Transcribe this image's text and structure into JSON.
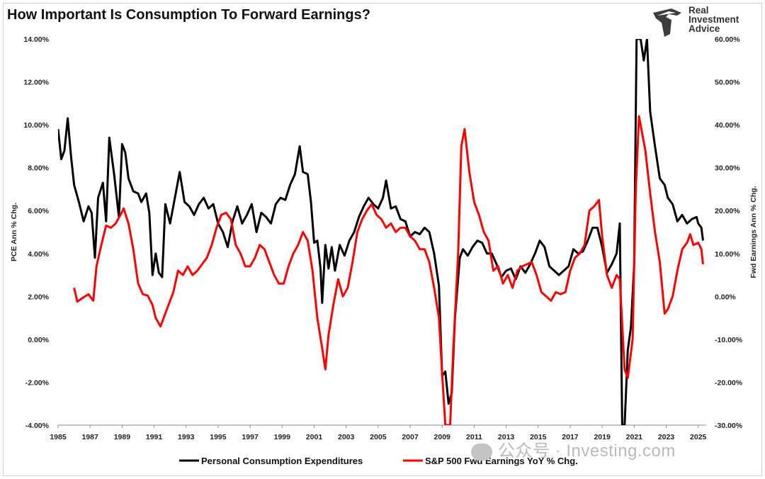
{
  "title": "How Important Is Consumption To Forward Earnings?",
  "logo": {
    "line1": "Real",
    "line2": "Investment",
    "line3": "Advice",
    "icon": "eagle-head-icon"
  },
  "watermark": {
    "text": "公众号 · Investing.com",
    "icon": "wechat-icon"
  },
  "colors": {
    "pce": "#000000",
    "earnings": "#ff0000",
    "background": "#ffffff"
  },
  "chart_data": {
    "type": "line",
    "title": "How Important Is Consumption To Forward Earnings?",
    "xlabel": "",
    "ylabel_left": "PCE Ann % Chg.",
    "ylabel_right": "Fwd Earnings Ann % Chg.",
    "xlim": [
      1985,
      2025.5
    ],
    "ylim_left": [
      -4,
      14
    ],
    "ylim_right": [
      -30,
      60
    ],
    "x_ticks": [
      "1985",
      "1987",
      "1989",
      "1991",
      "1993",
      "1995",
      "1997",
      "1999",
      "2001",
      "2003",
      "2005",
      "2007",
      "2009",
      "2011",
      "2013",
      "2015",
      "2017",
      "2019",
      "2021",
      "2023",
      "2025"
    ],
    "y_ticks_left": [
      "14.00%",
      "12.00%",
      "10.00%",
      "8.00%",
      "6.00%",
      "4.00%",
      "2.00%",
      "0.00%",
      "-2.00%",
      "-4.00%"
    ],
    "y_ticks_right": [
      "60.00%",
      "50.00%",
      "40.00%",
      "30.00%",
      "20.00%",
      "10.00%",
      "0.00%",
      "-10.00%",
      "-20.00%",
      "-30.00%"
    ],
    "grid": false,
    "legend_position": "bottom",
    "series": [
      {
        "name": "Personal Consumption Expenditures",
        "axis": "left",
        "color": "#000000",
        "points": [
          [
            1985.0,
            9.8
          ],
          [
            1985.2,
            8.4
          ],
          [
            1985.4,
            8.8
          ],
          [
            1985.6,
            10.3
          ],
          [
            1985.8,
            8.6
          ],
          [
            1986.0,
            7.2
          ],
          [
            1986.3,
            6.4
          ],
          [
            1986.6,
            5.5
          ],
          [
            1986.9,
            6.2
          ],
          [
            1987.1,
            5.9
          ],
          [
            1987.3,
            3.8
          ],
          [
            1987.5,
            6.6
          ],
          [
            1987.8,
            7.3
          ],
          [
            1988.0,
            5.5
          ],
          [
            1988.2,
            9.4
          ],
          [
            1988.5,
            7.7
          ],
          [
            1988.8,
            5.7
          ],
          [
            1989.0,
            9.1
          ],
          [
            1989.2,
            8.7
          ],
          [
            1989.4,
            7.5
          ],
          [
            1989.7,
            6.9
          ],
          [
            1990.0,
            6.8
          ],
          [
            1990.2,
            6.4
          ],
          [
            1990.5,
            6.8
          ],
          [
            1990.7,
            5.9
          ],
          [
            1990.9,
            3.0
          ],
          [
            1991.1,
            4.0
          ],
          [
            1991.3,
            3.1
          ],
          [
            1991.5,
            2.9
          ],
          [
            1991.7,
            6.3
          ],
          [
            1992.0,
            5.4
          ],
          [
            1992.3,
            6.6
          ],
          [
            1992.6,
            7.8
          ],
          [
            1992.9,
            6.4
          ],
          [
            1993.2,
            6.2
          ],
          [
            1993.5,
            5.8
          ],
          [
            1993.8,
            6.3
          ],
          [
            1994.1,
            6.6
          ],
          [
            1994.4,
            6.1
          ],
          [
            1994.7,
            6.3
          ],
          [
            1995.0,
            5.4
          ],
          [
            1995.3,
            5.0
          ],
          [
            1995.6,
            4.3
          ],
          [
            1995.9,
            5.5
          ],
          [
            1996.2,
            6.2
          ],
          [
            1996.5,
            5.4
          ],
          [
            1996.8,
            5.8
          ],
          [
            1997.1,
            6.3
          ],
          [
            1997.4,
            5.0
          ],
          [
            1997.7,
            5.9
          ],
          [
            1998.0,
            5.7
          ],
          [
            1998.3,
            5.4
          ],
          [
            1998.6,
            6.3
          ],
          [
            1998.9,
            6.6
          ],
          [
            1999.2,
            6.5
          ],
          [
            1999.5,
            7.2
          ],
          [
            1999.8,
            7.7
          ],
          [
            2000.1,
            9.0
          ],
          [
            2000.3,
            7.8
          ],
          [
            2000.6,
            7.7
          ],
          [
            2000.8,
            6.4
          ],
          [
            2001.0,
            4.5
          ],
          [
            2001.2,
            4.6
          ],
          [
            2001.4,
            3.3
          ],
          [
            2001.5,
            1.7
          ],
          [
            2001.7,
            4.4
          ],
          [
            2001.9,
            3.3
          ],
          [
            2002.1,
            4.3
          ],
          [
            2002.3,
            3.2
          ],
          [
            2002.6,
            4.4
          ],
          [
            2002.9,
            3.9
          ],
          [
            2003.2,
            4.6
          ],
          [
            2003.5,
            5.0
          ],
          [
            2003.8,
            5.7
          ],
          [
            2004.1,
            6.2
          ],
          [
            2004.4,
            6.6
          ],
          [
            2004.7,
            6.3
          ],
          [
            2005.0,
            6.1
          ],
          [
            2005.3,
            6.6
          ],
          [
            2005.5,
            7.4
          ],
          [
            2005.8,
            6.1
          ],
          [
            2006.1,
            6.2
          ],
          [
            2006.4,
            5.6
          ],
          [
            2006.7,
            5.5
          ],
          [
            2007.0,
            4.8
          ],
          [
            2007.3,
            5.0
          ],
          [
            2007.6,
            4.9
          ],
          [
            2007.9,
            5.2
          ],
          [
            2008.2,
            5.0
          ],
          [
            2008.5,
            4.0
          ],
          [
            2008.8,
            2.5
          ],
          [
            2009.0,
            -1.7
          ],
          [
            2009.2,
            -1.5
          ],
          [
            2009.4,
            -3.0
          ],
          [
            2009.6,
            -2.5
          ],
          [
            2009.8,
            1.0
          ],
          [
            2010.1,
            3.8
          ],
          [
            2010.3,
            4.2
          ],
          [
            2010.6,
            3.9
          ],
          [
            2010.9,
            4.3
          ],
          [
            2011.2,
            4.6
          ],
          [
            2011.5,
            4.5
          ],
          [
            2011.8,
            4.0
          ],
          [
            2012.1,
            4.0
          ],
          [
            2012.4,
            3.5
          ],
          [
            2012.7,
            2.9
          ],
          [
            2013.0,
            3.2
          ],
          [
            2013.3,
            3.3
          ],
          [
            2013.6,
            2.8
          ],
          [
            2013.9,
            3.4
          ],
          [
            2014.2,
            3.1
          ],
          [
            2014.5,
            3.5
          ],
          [
            2014.8,
            4.0
          ],
          [
            2015.1,
            4.6
          ],
          [
            2015.4,
            4.3
          ],
          [
            2015.7,
            3.4
          ],
          [
            2016.0,
            3.2
          ],
          [
            2016.3,
            3.0
          ],
          [
            2016.6,
            3.2
          ],
          [
            2016.9,
            3.4
          ],
          [
            2017.2,
            4.2
          ],
          [
            2017.5,
            4.0
          ],
          [
            2017.8,
            4.1
          ],
          [
            2018.1,
            4.6
          ],
          [
            2018.4,
            5.2
          ],
          [
            2018.7,
            5.2
          ],
          [
            2019.0,
            4.3
          ],
          [
            2019.3,
            3.1
          ],
          [
            2019.6,
            3.5
          ],
          [
            2019.9,
            4.0
          ],
          [
            2020.1,
            5.4
          ],
          [
            2020.25,
            -4.0
          ],
          [
            2020.4,
            -4.0
          ],
          [
            2020.6,
            -0.5
          ],
          [
            2020.8,
            0.6
          ],
          [
            2021.0,
            3.5
          ],
          [
            2021.15,
            14.0
          ],
          [
            2021.4,
            14.0
          ],
          [
            2021.6,
            13.0
          ],
          [
            2021.8,
            14.0
          ],
          [
            2022.0,
            10.6
          ],
          [
            2022.3,
            9.0
          ],
          [
            2022.6,
            7.5
          ],
          [
            2022.9,
            7.2
          ],
          [
            2023.1,
            6.6
          ],
          [
            2023.4,
            6.3
          ],
          [
            2023.7,
            5.5
          ],
          [
            2024.0,
            5.8
          ],
          [
            2024.3,
            5.4
          ],
          [
            2024.6,
            5.6
          ],
          [
            2024.9,
            5.7
          ],
          [
            2025.0,
            5.4
          ],
          [
            2025.2,
            5.2
          ],
          [
            2025.3,
            4.6
          ]
        ]
      },
      {
        "name": "S&P 500 Fwd Earnings YoY % Chg.",
        "axis": "right",
        "color": "#ff0000",
        "points": [
          [
            1986.0,
            2.0
          ],
          [
            1986.2,
            -1.2
          ],
          [
            1986.6,
            -0.2
          ],
          [
            1986.9,
            0.5
          ],
          [
            1987.2,
            -1.0
          ],
          [
            1987.4,
            7.0
          ],
          [
            1987.7,
            12.0
          ],
          [
            1988.0,
            16.5
          ],
          [
            1988.3,
            16.0
          ],
          [
            1988.6,
            17.0
          ],
          [
            1988.9,
            19.0
          ],
          [
            1989.1,
            20.5
          ],
          [
            1989.4,
            17.0
          ],
          [
            1989.7,
            11.0
          ],
          [
            1990.0,
            3.0
          ],
          [
            1990.3,
            0.5
          ],
          [
            1990.6,
            0.2
          ],
          [
            1990.9,
            -2.0
          ],
          [
            1991.1,
            -5.0
          ],
          [
            1991.4,
            -7.0
          ],
          [
            1991.6,
            -5.0
          ],
          [
            1991.9,
            -2.0
          ],
          [
            1992.2,
            1.0
          ],
          [
            1992.5,
            6.0
          ],
          [
            1992.8,
            5.0
          ],
          [
            1993.1,
            7.0
          ],
          [
            1993.4,
            5.0
          ],
          [
            1993.7,
            6.0
          ],
          [
            1994.0,
            7.5
          ],
          [
            1994.3,
            9.0
          ],
          [
            1994.6,
            12.0
          ],
          [
            1994.9,
            16.0
          ],
          [
            1995.2,
            19.0
          ],
          [
            1995.5,
            19.5
          ],
          [
            1995.8,
            18.0
          ],
          [
            1996.1,
            12.0
          ],
          [
            1996.4,
            10.0
          ],
          [
            1996.7,
            7.0
          ],
          [
            1997.0,
            7.0
          ],
          [
            1997.3,
            9.0
          ],
          [
            1997.6,
            12.0
          ],
          [
            1997.9,
            11.0
          ],
          [
            1998.2,
            8.0
          ],
          [
            1998.5,
            5.0
          ],
          [
            1998.8,
            3.0
          ],
          [
            1999.1,
            3.0
          ],
          [
            1999.4,
            7.0
          ],
          [
            1999.7,
            10.0
          ],
          [
            2000.0,
            12.0
          ],
          [
            2000.3,
            15.0
          ],
          [
            2000.6,
            13.0
          ],
          [
            2000.9,
            6.0
          ],
          [
            2001.2,
            -5.0
          ],
          [
            2001.5,
            -12.0
          ],
          [
            2001.7,
            -17.0
          ],
          [
            2001.9,
            -9.0
          ],
          [
            2002.2,
            -2.0
          ],
          [
            2002.5,
            4.0
          ],
          [
            2002.8,
            0.0
          ],
          [
            2003.1,
            2.0
          ],
          [
            2003.4,
            8.0
          ],
          [
            2003.7,
            15.0
          ],
          [
            2004.0,
            18.0
          ],
          [
            2004.3,
            20.0
          ],
          [
            2004.6,
            21.5
          ],
          [
            2004.9,
            19.0
          ],
          [
            2005.2,
            18.0
          ],
          [
            2005.5,
            16.0
          ],
          [
            2005.8,
            17.0
          ],
          [
            2006.1,
            15.0
          ],
          [
            2006.4,
            16.0
          ],
          [
            2006.7,
            16.0
          ],
          [
            2007.0,
            14.0
          ],
          [
            2007.3,
            13.0
          ],
          [
            2007.6,
            11.0
          ],
          [
            2007.9,
            11.0
          ],
          [
            2008.2,
            8.0
          ],
          [
            2008.5,
            2.0
          ],
          [
            2008.8,
            -5.0
          ],
          [
            2009.0,
            -18.0
          ],
          [
            2009.2,
            -30.0
          ],
          [
            2009.5,
            -30.0
          ],
          [
            2009.7,
            -12.0
          ],
          [
            2010.0,
            10.0
          ],
          [
            2010.2,
            35.0
          ],
          [
            2010.4,
            39.0
          ],
          [
            2010.7,
            29.0
          ],
          [
            2011.0,
            22.0
          ],
          [
            2011.3,
            19.0
          ],
          [
            2011.6,
            15.0
          ],
          [
            2011.9,
            13.0
          ],
          [
            2012.2,
            6.0
          ],
          [
            2012.5,
            7.0
          ],
          [
            2012.8,
            3.0
          ],
          [
            2013.1,
            5.0
          ],
          [
            2013.4,
            2.0
          ],
          [
            2013.7,
            6.0
          ],
          [
            2014.0,
            7.0
          ],
          [
            2014.3,
            7.5
          ],
          [
            2014.6,
            8.0
          ],
          [
            2014.9,
            5.0
          ],
          [
            2015.2,
            1.0
          ],
          [
            2015.5,
            0.0
          ],
          [
            2015.8,
            -1.0
          ],
          [
            2016.1,
            1.0
          ],
          [
            2016.4,
            0.5
          ],
          [
            2016.7,
            1.0
          ],
          [
            2017.0,
            6.0
          ],
          [
            2017.3,
            9.0
          ],
          [
            2017.6,
            10.0
          ],
          [
            2017.9,
            12.0
          ],
          [
            2018.2,
            20.0
          ],
          [
            2018.5,
            21.0
          ],
          [
            2018.8,
            22.5
          ],
          [
            2019.0,
            14.0
          ],
          [
            2019.3,
            5.0
          ],
          [
            2019.6,
            2.0
          ],
          [
            2019.9,
            5.0
          ],
          [
            2020.1,
            4.0
          ],
          [
            2020.4,
            -17.0
          ],
          [
            2020.6,
            -19.0
          ],
          [
            2020.9,
            -10.0
          ],
          [
            2021.1,
            25.0
          ],
          [
            2021.3,
            42.0
          ],
          [
            2021.5,
            38.0
          ],
          [
            2021.7,
            34.0
          ],
          [
            2022.0,
            24.0
          ],
          [
            2022.3,
            15.0
          ],
          [
            2022.6,
            8.0
          ],
          [
            2022.9,
            -4.0
          ],
          [
            2023.1,
            -3.0
          ],
          [
            2023.4,
            0.0
          ],
          [
            2023.7,
            6.0
          ],
          [
            2024.0,
            11.0
          ],
          [
            2024.3,
            12.5
          ],
          [
            2024.5,
            14.5
          ],
          [
            2024.7,
            12.0
          ],
          [
            2025.0,
            12.5
          ],
          [
            2025.2,
            11.0
          ],
          [
            2025.3,
            7.5
          ]
        ]
      }
    ]
  }
}
